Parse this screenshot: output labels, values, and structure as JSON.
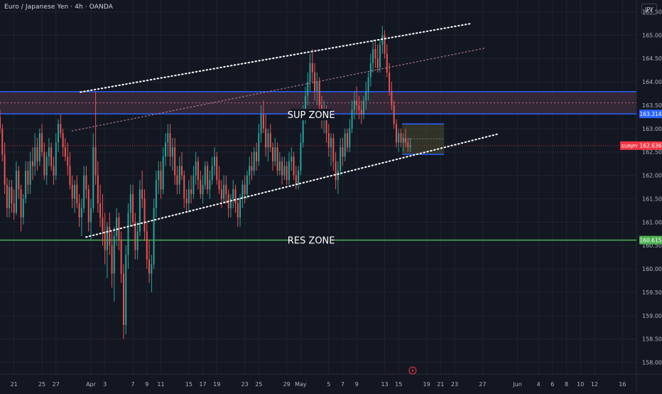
{
  "header": {
    "title": "Euro / Japanese Yen · 4h · OANDA",
    "currency": "JPY"
  },
  "colors": {
    "background": "#131722",
    "grid": "#1f2330",
    "up": "#26a69a",
    "down": "#ef5350",
    "blue_line": "#2962ff",
    "green_line": "#4caf50",
    "zone_fill": "#3b2a3a",
    "price_tag": "#f23645"
  },
  "chart_data": {
    "type": "candlestick",
    "symbol": "EURJPY",
    "timeframe": "4h",
    "ylim": [
      157.75,
      165.75
    ],
    "y_ticks": [
      "165.500",
      "165.000",
      "164.500",
      "164.000",
      "163.500",
      "163.000",
      "162.500",
      "162.000",
      "161.500",
      "161.000",
      "160.500",
      "160.000",
      "159.500",
      "159.000",
      "158.500",
      "158.000"
    ],
    "x_ticks": [
      "21",
      "25",
      "27",
      "Apr",
      "3",
      "7",
      "9",
      "11",
      "15",
      "17",
      "19",
      "23",
      "25",
      "29",
      "May",
      "5",
      "7",
      "9",
      "13",
      "15",
      "19",
      "21",
      "23",
      "27",
      "Jun",
      "4",
      "6",
      "8",
      "10",
      "12",
      "16"
    ],
    "x_tick_day": [
      0,
      4,
      6,
      11,
      13,
      17,
      19,
      21,
      25,
      27,
      29,
      33,
      35,
      39,
      41,
      45,
      47,
      49,
      53,
      55,
      59,
      61,
      63,
      67,
      72,
      75,
      77,
      79,
      81,
      83,
      87
    ],
    "x_day_range": [
      -2,
      89
    ],
    "price_labels": {
      "sup_line": "163.314",
      "current": "162.636",
      "current_symbol": "EURJPY",
      "res_line": "160.615"
    },
    "levels": {
      "sup_zone_top": 163.79,
      "sup_zone_bottom": 163.314,
      "sup_zone_mid": 163.55,
      "current": 162.636,
      "res_line": 160.615
    },
    "annotations": [
      {
        "text": "SUP ZONE",
        "day": 42.5,
        "price": 163.3
      },
      {
        "text": "RES ZONE",
        "day": 42.5,
        "price": 160.615
      }
    ],
    "trendlines": [
      {
        "name": "channel-upper",
        "style": "dotted-white",
        "from": [
          9.5,
          163.78
        ],
        "to": [
          65.5,
          165.25
        ]
      },
      {
        "name": "channel-mid",
        "style": "dotted-pink",
        "from": [
          8.3,
          162.95
        ],
        "to": [
          67.3,
          164.72
        ]
      },
      {
        "name": "channel-lower",
        "style": "dotted-white",
        "from": [
          10.3,
          160.68
        ],
        "to": [
          69.1,
          162.88
        ]
      }
    ],
    "box": {
      "from_day": 55.5,
      "to_day": 61.5,
      "top": 163.1,
      "bottom": 162.45,
      "mid": 162.78
    },
    "candles": [
      [
        -2.0,
        163.25,
        163.4,
        162.9,
        163.0
      ],
      [
        -1.67,
        163.0,
        163.1,
        162.3,
        162.45
      ],
      [
        -1.33,
        162.45,
        162.7,
        161.6,
        161.8
      ],
      [
        -1.0,
        161.8,
        161.95,
        161.1,
        161.3
      ],
      [
        -0.67,
        161.3,
        161.9,
        161.1,
        161.75
      ],
      [
        -0.33,
        161.75,
        161.9,
        161.2,
        161.4
      ],
      [
        0.0,
        161.4,
        161.7,
        161.05,
        161.2
      ],
      [
        0.33,
        161.2,
        162.3,
        161.15,
        162.1
      ],
      [
        0.67,
        162.1,
        162.2,
        161.5,
        161.7
      ],
      [
        1.0,
        161.7,
        161.8,
        160.8,
        161.1
      ],
      [
        1.33,
        161.1,
        161.6,
        160.95,
        161.5
      ],
      [
        1.67,
        161.5,
        162.3,
        161.4,
        162.1
      ],
      [
        2.0,
        162.1,
        162.3,
        161.6,
        161.8
      ],
      [
        2.33,
        161.8,
        162.5,
        161.6,
        162.3
      ],
      [
        2.67,
        162.3,
        162.6,
        161.9,
        162.2
      ],
      [
        3.0,
        162.2,
        162.9,
        162.0,
        162.6
      ],
      [
        3.33,
        162.6,
        162.8,
        162.1,
        162.3
      ],
      [
        3.67,
        162.3,
        163.0,
        162.2,
        162.9
      ],
      [
        4.0,
        162.9,
        163.1,
        162.4,
        162.5
      ],
      [
        4.33,
        162.5,
        162.7,
        161.9,
        162.0
      ],
      [
        4.67,
        162.0,
        162.5,
        161.8,
        162.4
      ],
      [
        5.0,
        162.4,
        162.8,
        162.2,
        162.6
      ],
      [
        5.33,
        162.6,
        162.7,
        162.1,
        162.2
      ],
      [
        5.67,
        162.2,
        162.4,
        161.8,
        162.0
      ],
      [
        6.0,
        162.0,
        162.9,
        161.9,
        162.7
      ],
      [
        6.33,
        162.7,
        163.2,
        162.5,
        163.1
      ],
      [
        6.67,
        163.1,
        163.3,
        162.8,
        162.9
      ],
      [
        7.0,
        162.9,
        163.0,
        162.4,
        162.6
      ],
      [
        7.33,
        162.6,
        162.8,
        162.3,
        162.4
      ],
      [
        7.67,
        162.4,
        162.7,
        162.0,
        162.2
      ],
      [
        8.0,
        162.2,
        162.5,
        161.7,
        161.8
      ],
      [
        8.33,
        161.8,
        162.0,
        161.3,
        161.5
      ],
      [
        8.67,
        161.5,
        161.9,
        161.2,
        161.8
      ],
      [
        9.0,
        161.8,
        162.0,
        161.3,
        161.4
      ],
      [
        9.33,
        161.4,
        161.6,
        160.9,
        161.1
      ],
      [
        9.67,
        161.1,
        161.5,
        160.7,
        161.3
      ],
      [
        10.0,
        161.3,
        162.2,
        161.2,
        162.0
      ],
      [
        10.33,
        162.0,
        162.2,
        161.5,
        161.7
      ],
      [
        10.67,
        161.7,
        161.8,
        160.8,
        161.0
      ],
      [
        11.0,
        161.0,
        161.5,
        160.6,
        161.3
      ],
      [
        11.33,
        161.3,
        162.9,
        161.2,
        162.6
      ],
      [
        11.67,
        162.6,
        163.8,
        161.8,
        162.0
      ],
      [
        12.0,
        162.0,
        162.3,
        161.2,
        161.4
      ],
      [
        12.33,
        161.4,
        161.8,
        160.9,
        161.1
      ],
      [
        12.67,
        161.1,
        161.6,
        160.5,
        160.8
      ],
      [
        13.0,
        160.8,
        161.2,
        160.1,
        160.4
      ],
      [
        13.33,
        160.4,
        161.0,
        159.8,
        160.9
      ],
      [
        13.67,
        160.9,
        161.2,
        160.3,
        160.5
      ],
      [
        14.0,
        160.5,
        160.8,
        159.6,
        159.9
      ],
      [
        14.33,
        159.9,
        160.9,
        159.3,
        160.7
      ],
      [
        14.67,
        160.7,
        161.3,
        160.5,
        161.1
      ],
      [
        15.0,
        161.1,
        161.2,
        160.4,
        160.6
      ],
      [
        15.33,
        160.6,
        160.8,
        159.7,
        159.9
      ],
      [
        15.67,
        159.9,
        160.1,
        158.5,
        158.8
      ],
      [
        16.0,
        158.8,
        160.5,
        158.6,
        160.3
      ],
      [
        16.33,
        160.3,
        161.4,
        160.0,
        161.2
      ],
      [
        16.67,
        161.2,
        161.8,
        160.9,
        161.6
      ],
      [
        17.0,
        161.6,
        161.8,
        160.9,
        161.0
      ],
      [
        17.33,
        161.0,
        161.2,
        160.2,
        160.4
      ],
      [
        17.67,
        160.4,
        161.0,
        160.2,
        160.8
      ],
      [
        18.0,
        160.8,
        161.9,
        160.7,
        161.7
      ],
      [
        18.33,
        161.7,
        162.1,
        161.3,
        161.5
      ],
      [
        18.67,
        161.5,
        161.7,
        160.6,
        160.8
      ],
      [
        19.0,
        160.8,
        161.0,
        160.0,
        160.2
      ],
      [
        19.33,
        160.2,
        160.6,
        159.7,
        159.9
      ],
      [
        19.67,
        159.9,
        160.3,
        159.5,
        160.1
      ],
      [
        20.0,
        160.1,
        161.5,
        160.0,
        161.3
      ],
      [
        20.33,
        161.3,
        162.1,
        161.1,
        161.9
      ],
      [
        20.67,
        161.9,
        162.3,
        161.6,
        162.1
      ],
      [
        21.0,
        162.1,
        162.3,
        161.5,
        161.7
      ],
      [
        21.33,
        161.7,
        162.6,
        161.6,
        162.4
      ],
      [
        21.67,
        162.4,
        162.9,
        162.2,
        162.7
      ],
      [
        22.0,
        162.7,
        163.1,
        162.4,
        162.9
      ],
      [
        22.33,
        162.9,
        163.1,
        162.2,
        162.4
      ],
      [
        22.67,
        162.4,
        162.8,
        162.1,
        162.6
      ],
      [
        23.0,
        162.6,
        162.8,
        161.8,
        162.0
      ],
      [
        23.33,
        162.0,
        162.2,
        161.6,
        161.8
      ],
      [
        23.67,
        161.8,
        162.4,
        161.6,
        162.2
      ],
      [
        24.0,
        162.2,
        162.5,
        161.9,
        162.0
      ],
      [
        24.33,
        162.0,
        162.1,
        161.3,
        161.5
      ],
      [
        24.67,
        161.5,
        161.7,
        161.2,
        161.4
      ],
      [
        25.0,
        161.4,
        161.9,
        161.2,
        161.7
      ],
      [
        25.33,
        161.7,
        162.0,
        161.4,
        161.6
      ],
      [
        25.67,
        161.6,
        162.2,
        161.5,
        162.0
      ],
      [
        26.0,
        162.0,
        162.5,
        161.8,
        162.3
      ],
      [
        26.33,
        162.3,
        162.4,
        161.7,
        161.9
      ],
      [
        26.67,
        161.9,
        162.1,
        161.5,
        161.6
      ],
      [
        27.0,
        161.6,
        162.0,
        161.4,
        161.8
      ],
      [
        27.33,
        161.8,
        162.3,
        161.7,
        162.2
      ],
      [
        27.67,
        162.2,
        162.3,
        161.6,
        161.7
      ],
      [
        28.0,
        161.7,
        162.1,
        161.5,
        161.9
      ],
      [
        28.33,
        161.9,
        162.4,
        161.8,
        162.2
      ],
      [
        28.67,
        162.2,
        162.6,
        162.0,
        162.4
      ],
      [
        29.0,
        162.4,
        162.5,
        161.8,
        161.9
      ],
      [
        29.33,
        161.9,
        162.2,
        161.6,
        161.7
      ],
      [
        29.67,
        161.7,
        161.9,
        161.3,
        161.5
      ],
      [
        30.0,
        161.5,
        162.0,
        161.4,
        161.8
      ],
      [
        30.33,
        161.8,
        162.0,
        161.4,
        161.6
      ],
      [
        30.67,
        161.6,
        161.7,
        161.1,
        161.3
      ],
      [
        31.0,
        161.3,
        161.6,
        161.1,
        161.5
      ],
      [
        31.33,
        161.5,
        161.9,
        161.3,
        161.7
      ],
      [
        31.67,
        161.7,
        161.8,
        161.2,
        161.4
      ],
      [
        32.0,
        161.4,
        161.5,
        160.9,
        161.1
      ],
      [
        32.33,
        161.1,
        161.6,
        160.9,
        161.5
      ],
      [
        32.67,
        161.5,
        161.9,
        161.3,
        161.8
      ],
      [
        33.0,
        161.8,
        162.0,
        161.4,
        161.6
      ],
      [
        33.33,
        161.6,
        162.1,
        161.5,
        162.0
      ],
      [
        33.67,
        162.0,
        162.4,
        161.8,
        162.2
      ],
      [
        34.0,
        162.2,
        162.5,
        161.9,
        162.1
      ],
      [
        34.33,
        162.1,
        162.6,
        162.0,
        162.5
      ],
      [
        34.67,
        162.5,
        162.7,
        162.1,
        162.3
      ],
      [
        35.0,
        162.3,
        163.1,
        162.2,
        162.9
      ],
      [
        35.33,
        162.9,
        163.5,
        162.7,
        163.3
      ],
      [
        35.67,
        163.3,
        163.6,
        162.9,
        163.0
      ],
      [
        36.0,
        163.0,
        163.3,
        162.4,
        162.6
      ],
      [
        36.33,
        162.6,
        163.0,
        162.3,
        162.9
      ],
      [
        36.67,
        162.9,
        163.1,
        162.5,
        162.6
      ],
      [
        37.0,
        162.6,
        162.7,
        162.1,
        162.3
      ],
      [
        37.33,
        162.3,
        162.8,
        162.2,
        162.6
      ],
      [
        37.67,
        162.6,
        162.7,
        162.0,
        162.1
      ],
      [
        38.0,
        162.1,
        162.5,
        162.0,
        162.3
      ],
      [
        38.33,
        162.3,
        162.4,
        161.8,
        162.0
      ],
      [
        38.67,
        162.0,
        162.4,
        161.9,
        162.2
      ],
      [
        39.0,
        162.2,
        162.3,
        161.8,
        161.9
      ],
      [
        39.33,
        161.9,
        162.5,
        161.8,
        162.3
      ],
      [
        39.67,
        162.3,
        162.6,
        162.1,
        162.4
      ],
      [
        40.0,
        162.4,
        162.5,
        161.9,
        162.0
      ],
      [
        40.33,
        162.0,
        162.2,
        161.7,
        161.8
      ],
      [
        40.67,
        161.8,
        162.2,
        161.7,
        162.1
      ],
      [
        41.0,
        162.1,
        162.9,
        162.0,
        162.7
      ],
      [
        41.33,
        162.7,
        163.5,
        162.6,
        163.3
      ],
      [
        41.67,
        163.3,
        163.9,
        163.1,
        163.7
      ],
      [
        42.0,
        163.7,
        164.2,
        163.5,
        164.0
      ],
      [
        42.33,
        164.0,
        164.6,
        163.8,
        164.4
      ],
      [
        42.67,
        164.4,
        164.7,
        164.0,
        164.2
      ],
      [
        43.0,
        164.2,
        164.4,
        163.6,
        163.8
      ],
      [
        43.33,
        163.8,
        164.2,
        163.5,
        164.0
      ],
      [
        43.67,
        164.0,
        164.1,
        163.3,
        163.5
      ],
      [
        44.0,
        163.5,
        163.7,
        163.0,
        163.2
      ],
      [
        44.33,
        163.2,
        163.6,
        162.9,
        163.4
      ],
      [
        44.67,
        163.4,
        163.5,
        162.7,
        162.9
      ],
      [
        45.0,
        162.9,
        163.1,
        162.4,
        162.6
      ],
      [
        45.33,
        162.6,
        162.9,
        162.2,
        162.8
      ],
      [
        45.67,
        162.8,
        162.9,
        162.1,
        162.3
      ],
      [
        46.0,
        162.3,
        162.5,
        161.7,
        161.9
      ],
      [
        46.33,
        161.9,
        162.3,
        161.6,
        162.1
      ],
      [
        46.67,
        162.1,
        162.8,
        162.0,
        162.6
      ],
      [
        47.0,
        162.6,
        162.8,
        162.2,
        162.4
      ],
      [
        47.33,
        162.4,
        163.0,
        162.3,
        162.9
      ],
      [
        47.67,
        162.9,
        163.0,
        162.5,
        162.6
      ],
      [
        48.0,
        162.6,
        163.2,
        162.5,
        163.0
      ],
      [
        48.33,
        163.0,
        163.6,
        162.9,
        163.4
      ],
      [
        48.67,
        163.4,
        163.8,
        163.2,
        163.6
      ],
      [
        49.0,
        163.6,
        163.9,
        163.3,
        163.5
      ],
      [
        49.33,
        163.5,
        163.7,
        163.2,
        163.4
      ],
      [
        49.67,
        163.4,
        163.6,
        163.1,
        163.3
      ],
      [
        50.0,
        163.3,
        163.7,
        163.2,
        163.6
      ],
      [
        50.33,
        163.6,
        164.0,
        163.4,
        163.8
      ],
      [
        50.67,
        163.8,
        164.2,
        163.6,
        164.1
      ],
      [
        51.0,
        164.1,
        164.6,
        163.9,
        164.4
      ],
      [
        51.33,
        164.4,
        164.9,
        164.2,
        164.7
      ],
      [
        51.67,
        164.7,
        164.9,
        164.3,
        164.5
      ],
      [
        52.0,
        164.5,
        164.8,
        164.2,
        164.3
      ],
      [
        52.33,
        164.3,
        164.9,
        164.2,
        164.8
      ],
      [
        52.67,
        164.8,
        165.2,
        164.6,
        165.0
      ],
      [
        53.0,
        165.0,
        165.1,
        164.5,
        164.6
      ],
      [
        53.33,
        164.6,
        164.8,
        164.1,
        164.2
      ],
      [
        53.67,
        164.2,
        164.4,
        163.7,
        163.8
      ],
      [
        54.0,
        163.8,
        164.0,
        163.4,
        163.5
      ],
      [
        54.33,
        163.5,
        163.6,
        163.0,
        163.1
      ],
      [
        54.67,
        163.1,
        163.2,
        162.6,
        162.7
      ],
      [
        55.0,
        162.7,
        163.0,
        162.5,
        162.9
      ],
      [
        55.33,
        162.9,
        163.0,
        162.6,
        162.7
      ],
      [
        55.67,
        162.7,
        162.9,
        162.5,
        162.8
      ],
      [
        56.0,
        162.8,
        163.0,
        162.6,
        162.7
      ],
      [
        56.33,
        162.7,
        162.8,
        162.5,
        162.6
      ],
      [
        56.67,
        162.6,
        162.8,
        162.5,
        162.64
      ]
    ]
  }
}
